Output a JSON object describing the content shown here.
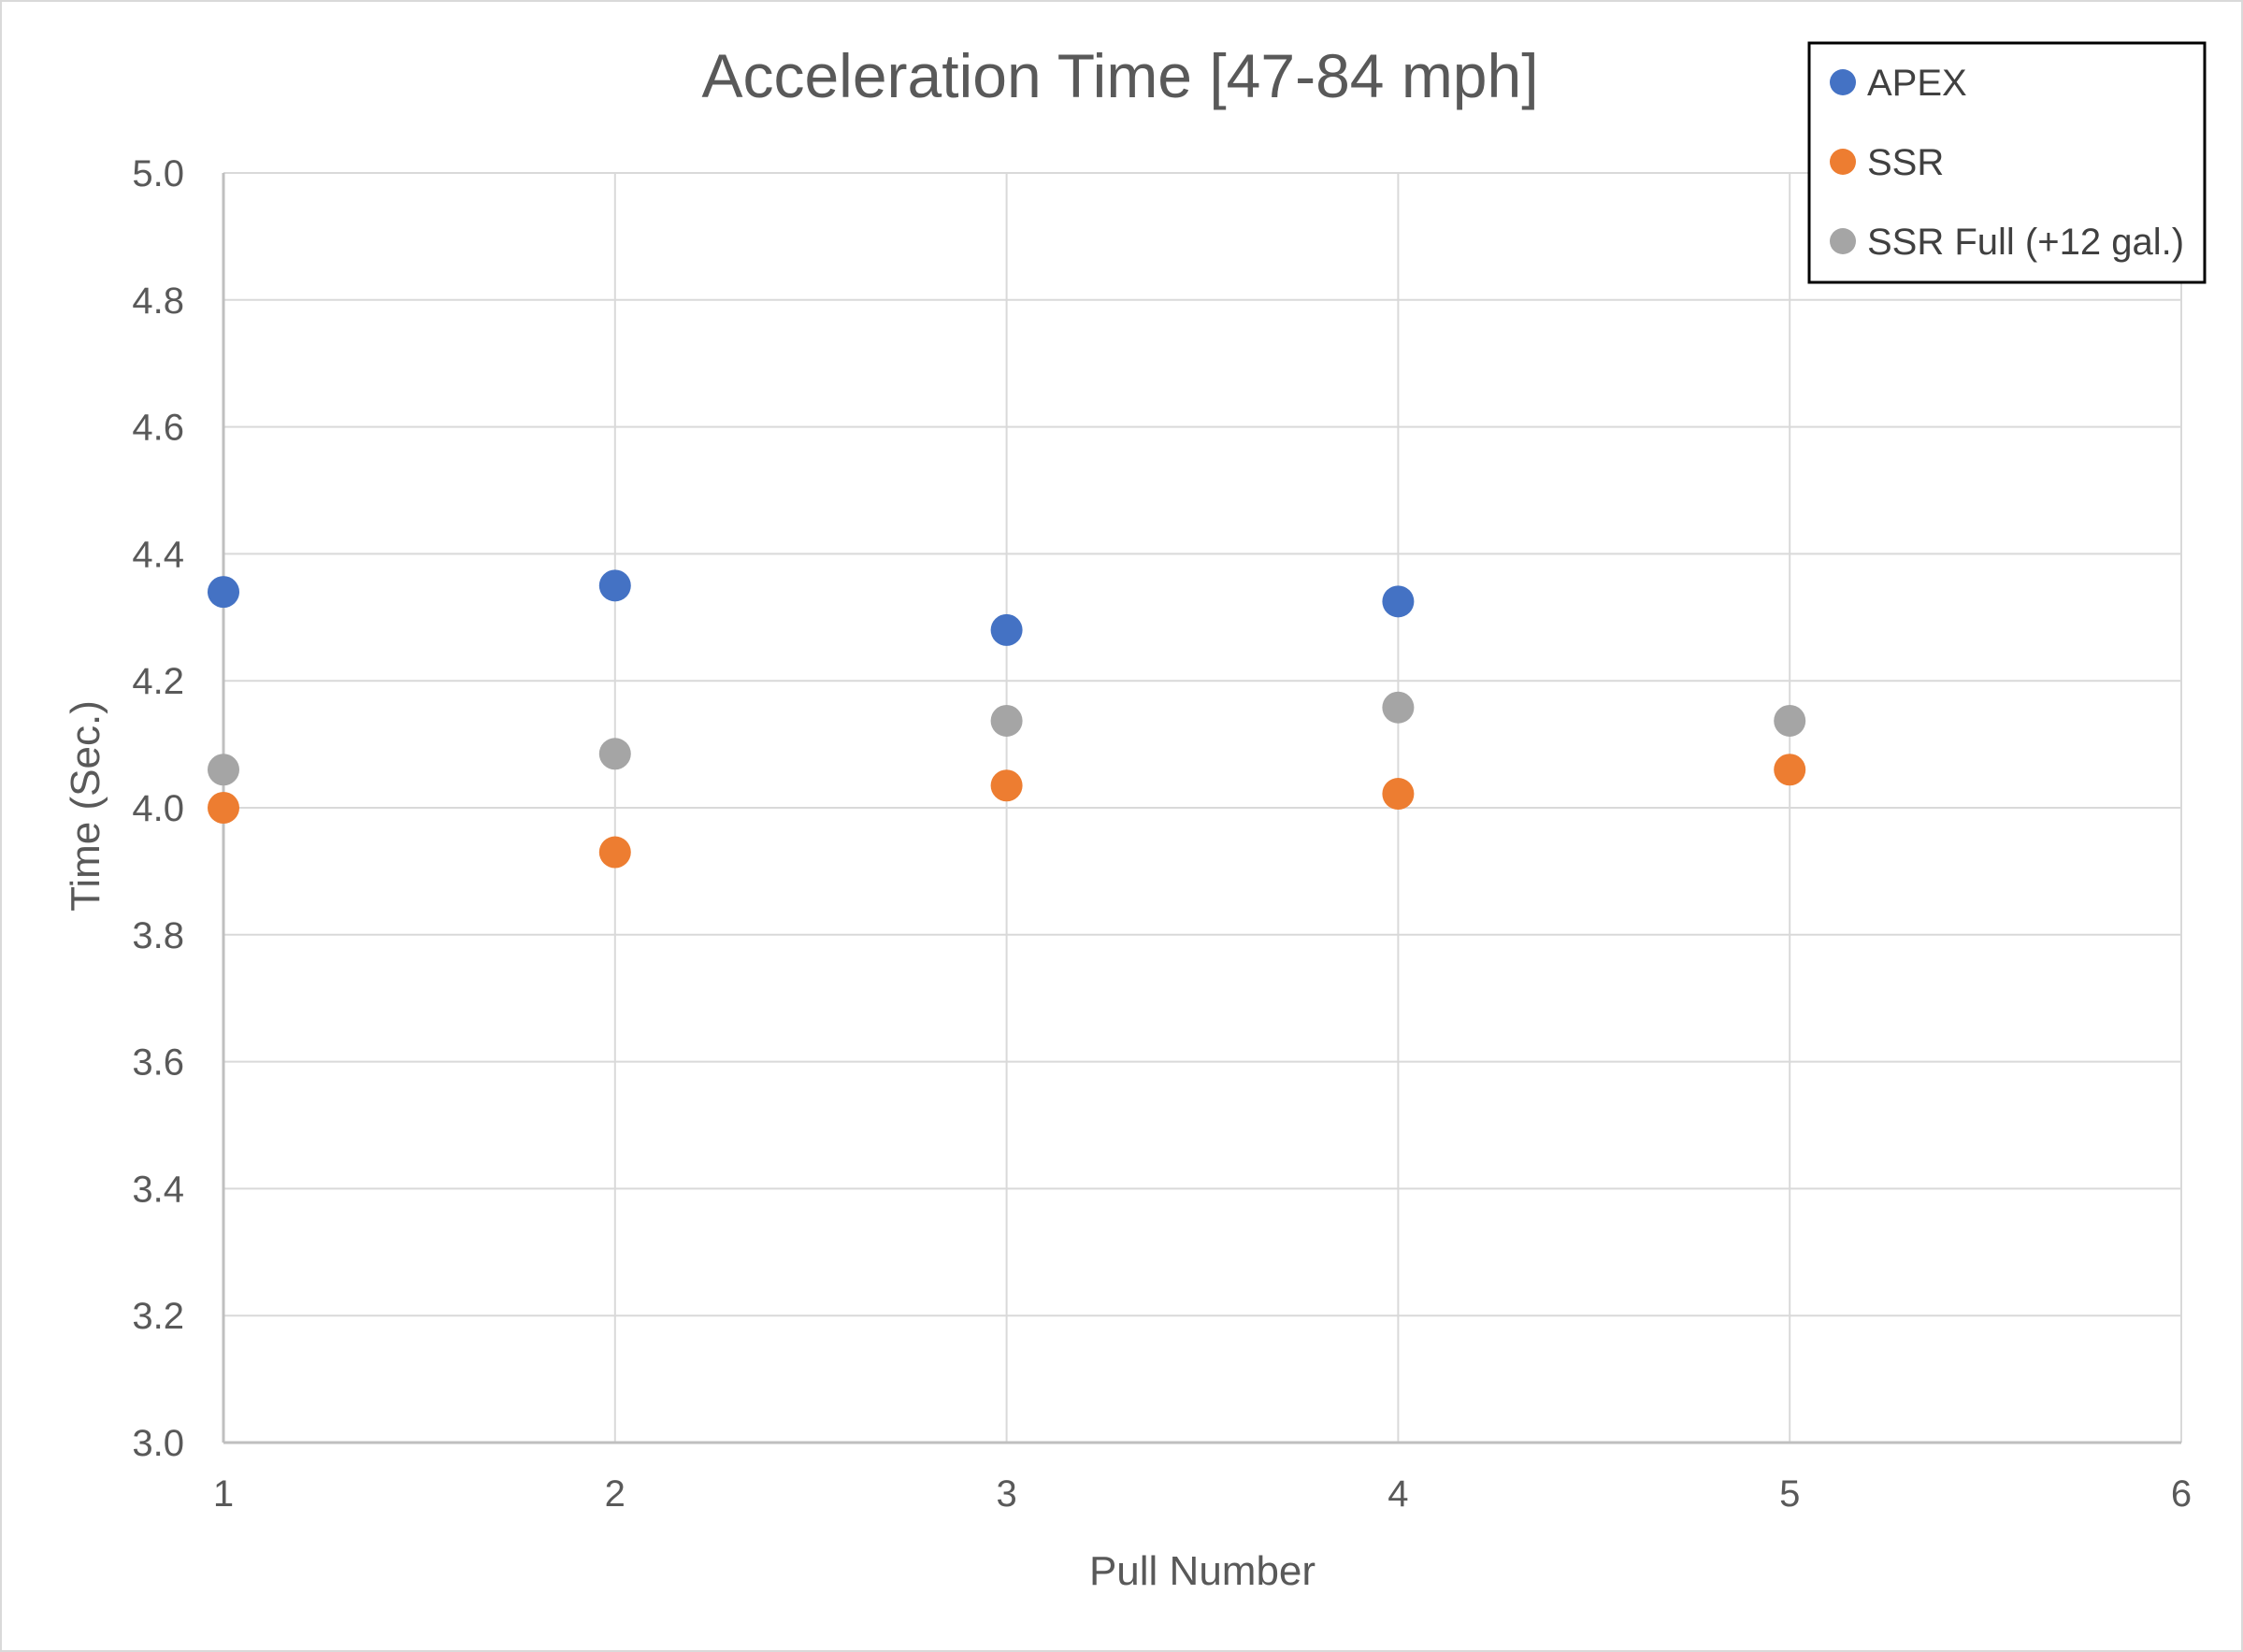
{
  "chart_data": {
    "type": "scatter",
    "title": "Acceleration Time [47-84 mph]",
    "xlabel": "Pull Number",
    "ylabel": "Time (Sec.)",
    "xlim": [
      1,
      6
    ],
    "ylim": [
      3.0,
      5.0
    ],
    "x_ticks": [
      "1",
      "2",
      "3",
      "4",
      "5",
      "6"
    ],
    "y_ticks": [
      "3.0",
      "3.2",
      "3.4",
      "3.6",
      "3.8",
      "4.0",
      "4.2",
      "4.4",
      "4.6",
      "4.8",
      "5.0"
    ],
    "grid": true,
    "legend_position": "top-right",
    "series": [
      {
        "name": "APEX",
        "color": "#4472C4",
        "points": [
          [
            1,
            4.34
          ],
          [
            2,
            4.35
          ],
          [
            3,
            4.28
          ],
          [
            4,
            4.325
          ]
        ]
      },
      {
        "name": "SSR",
        "color": "#ED7D31",
        "points": [
          [
            1,
            4.0
          ],
          [
            2,
            3.93
          ],
          [
            3,
            4.035
          ],
          [
            4,
            4.022
          ],
          [
            5,
            4.06
          ]
        ]
      },
      {
        "name": "SSR Full (+12 gal.)",
        "color": "#A5A5A5",
        "points": [
          [
            1,
            4.06
          ],
          [
            2,
            4.085
          ],
          [
            3,
            4.137
          ],
          [
            4,
            4.158
          ],
          [
            5,
            4.137
          ]
        ]
      }
    ]
  }
}
